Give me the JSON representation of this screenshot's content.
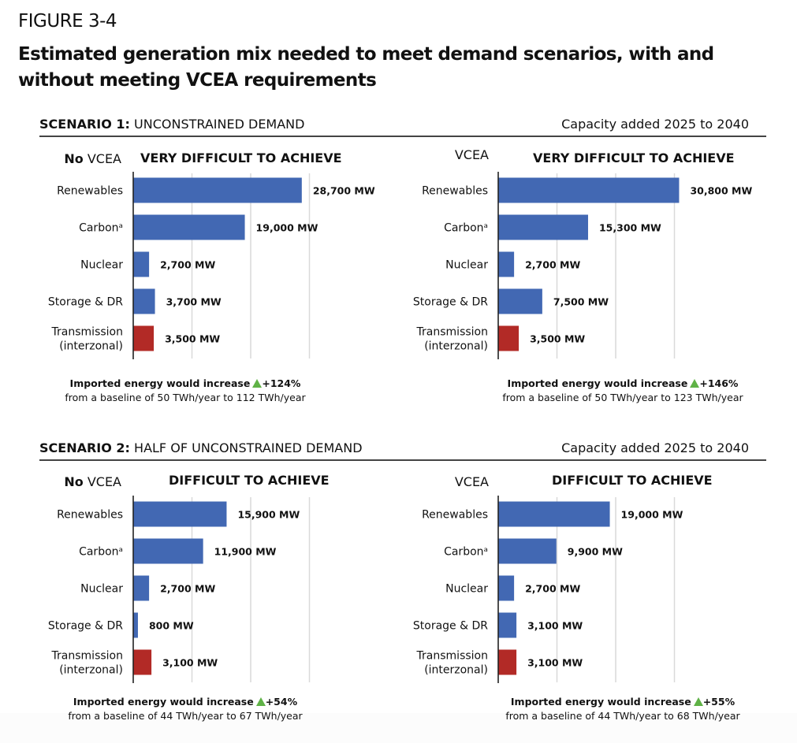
{
  "figure": {
    "label": "FIGURE 3-4",
    "title": "Estimated generation mix needed to meet demand scenarios, with and without meeting VCEA requirements"
  },
  "colors": {
    "bar_generation": "#4268b3",
    "bar_transmission": "#b22a26",
    "gridline": "#d9d9d9",
    "axis": "#222222",
    "increase_arrow": "#5fb246"
  },
  "scenarios": [
    {
      "label_bold": "SCENARIO 1:",
      "label_rest": " UNCONSTRAINED DEMAND",
      "capacity_note": "Capacity added 2025 to 2040"
    },
    {
      "label_bold": "SCENARIO 2:",
      "label_rest": " HALF OF UNCONSTRAINED DEMAND",
      "capacity_note": "Capacity added 2025 to 2040"
    }
  ],
  "panels": [
    {
      "vcea_bold": "No",
      "vcea_text": " VCEA",
      "difficulty": "VERY DIFFICULT TO ACHIEVE",
      "note_line1": "Imported energy would increase",
      "note_pct": "+124%",
      "note_line2": "from a baseline of 50 TWh/year to 112 TWh/year"
    },
    {
      "vcea_bold": "",
      "vcea_text": "VCEA",
      "difficulty": "VERY DIFFICULT TO ACHIEVE",
      "note_line1": "Imported energy would increase",
      "note_pct": "+146%",
      "note_line2": "from a baseline of 50 TWh/year to 123 TWh/year"
    },
    {
      "vcea_bold": "No",
      "vcea_text": " VCEA",
      "difficulty": "DIFFICULT TO ACHIEVE",
      "note_line1": "Imported energy would increase",
      "note_pct": "+54%",
      "note_line2": "from a baseline of 44 TWh/year to 67 TWh/year"
    },
    {
      "vcea_bold": "",
      "vcea_text": "VCEA",
      "difficulty": "DIFFICULT TO ACHIEVE",
      "note_line1": "Imported energy would increase",
      "note_pct": "+55%",
      "note_line2": "from a baseline of 44 TWh/year to 68 TWh/year"
    }
  ],
  "chart_data": [
    {
      "type": "bar",
      "orientation": "horizontal",
      "title": "Scenario 1: Unconstrained demand — No VCEA (Very difficult to achieve)",
      "categories": [
        "Renewables",
        "Carbonᵃ",
        "Nuclear",
        "Storage & DR",
        "Transmission (interzonal)"
      ],
      "category_lines": [
        [
          "Renewables"
        ],
        [
          "Carbonᵃ"
        ],
        [
          "Nuclear"
        ],
        [
          "Storage & DR"
        ],
        [
          "Transmission",
          "(interzonal)"
        ]
      ],
      "values": [
        28700,
        19000,
        2700,
        3700,
        3500
      ],
      "data_labels": [
        "28,700 MW",
        "19,000 MW",
        "2,700 MW",
        "3,700 MW",
        "3,500 MW"
      ],
      "unit": "MW",
      "xlim": [
        0,
        30000
      ],
      "gridlines": [
        10000,
        20000,
        30000
      ],
      "grid": true
    },
    {
      "type": "bar",
      "orientation": "horizontal",
      "title": "Scenario 1: Unconstrained demand — VCEA (Very difficult to achieve)",
      "categories": [
        "Renewables",
        "Carbonᵃ",
        "Nuclear",
        "Storage & DR",
        "Transmission (interzonal)"
      ],
      "category_lines": [
        [
          "Renewables"
        ],
        [
          "Carbonᵃ"
        ],
        [
          "Nuclear"
        ],
        [
          "Storage & DR"
        ],
        [
          "Transmission",
          "(interzonal)"
        ]
      ],
      "values": [
        30800,
        15300,
        2700,
        7500,
        3500
      ],
      "data_labels": [
        "30,800 MW",
        "15,300 MW",
        "2,700 MW",
        "7,500 MW",
        "3,500 MW"
      ],
      "unit": "MW",
      "xlim": [
        0,
        30000
      ],
      "gridlines": [
        10000,
        20000,
        30000
      ],
      "grid": true
    },
    {
      "type": "bar",
      "orientation": "horizontal",
      "title": "Scenario 2: Half of unconstrained demand — No VCEA (Difficult to achieve)",
      "categories": [
        "Renewables",
        "Carbonᵃ",
        "Nuclear",
        "Storage & DR",
        "Transmission (interzonal)"
      ],
      "category_lines": [
        [
          "Renewables"
        ],
        [
          "Carbonᵃ"
        ],
        [
          "Nuclear"
        ],
        [
          "Storage & DR"
        ],
        [
          "Transmission",
          "(interzonal)"
        ]
      ],
      "values": [
        15900,
        11900,
        2700,
        800,
        3100
      ],
      "data_labels": [
        "15,900 MW",
        "11,900 MW",
        "2,700 MW",
        "800 MW",
        "3,100 MW"
      ],
      "unit": "MW",
      "xlim": [
        0,
        30000
      ],
      "gridlines": [
        10000,
        20000,
        30000
      ],
      "grid": true
    },
    {
      "type": "bar",
      "orientation": "horizontal",
      "title": "Scenario 2: Half of unconstrained demand — VCEA (Difficult to achieve)",
      "categories": [
        "Renewables",
        "Carbonᵃ",
        "Nuclear",
        "Storage & DR",
        "Transmission (interzonal)"
      ],
      "category_lines": [
        [
          "Renewables"
        ],
        [
          "Carbonᵃ"
        ],
        [
          "Nuclear"
        ],
        [
          "Storage & DR"
        ],
        [
          "Transmission",
          "(interzonal)"
        ]
      ],
      "values": [
        19000,
        9900,
        2700,
        3100,
        3100
      ],
      "data_labels": [
        "19,000 MW",
        "9,900 MW",
        "2,700 MW",
        "3,100 MW",
        "3,100 MW"
      ],
      "unit": "MW",
      "xlim": [
        0,
        30000
      ],
      "gridlines": [
        10000,
        20000,
        30000
      ],
      "grid": true
    }
  ]
}
